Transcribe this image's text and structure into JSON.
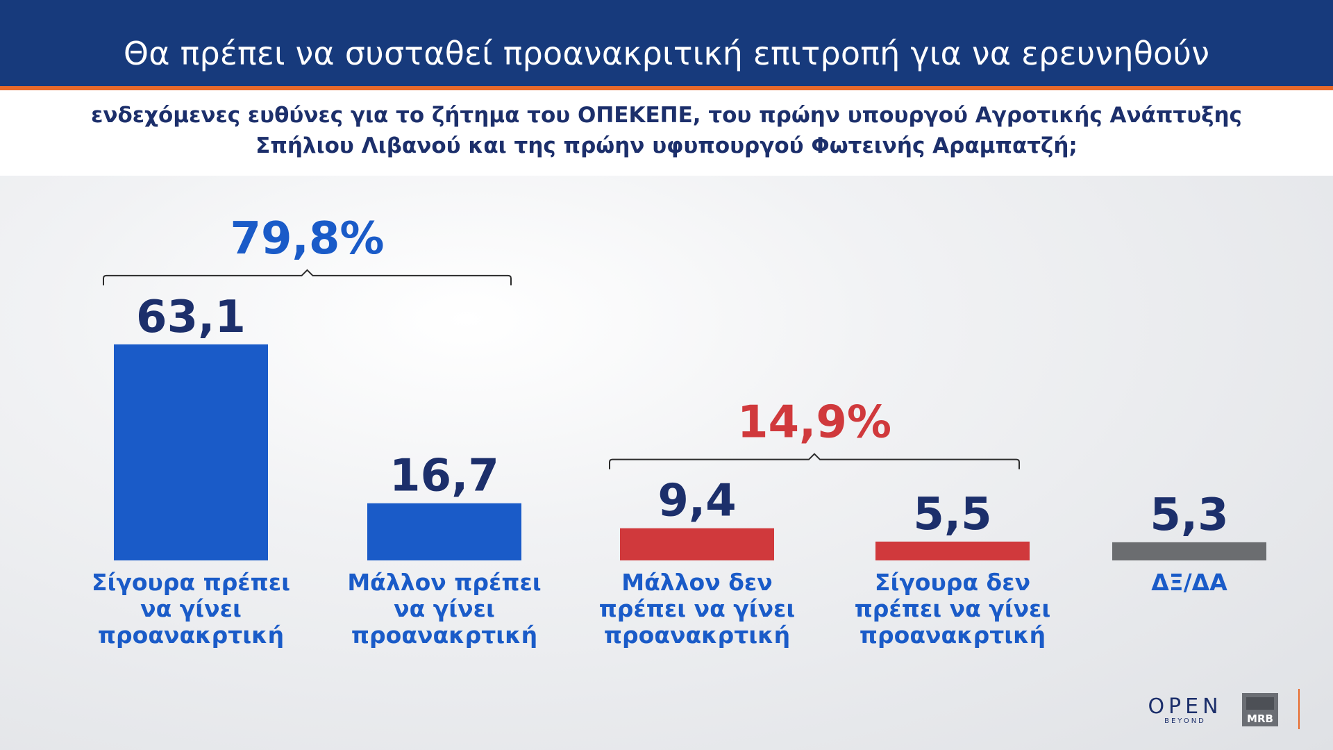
{
  "header": {
    "title": "Θα πρέπει να συσταθεί προανακριτική επιτροπή για να ερευνηθούν",
    "subtitle_line1": "ενδεχόμενες ευθύνες για το ζήτημα του ΟΠΕΚΕΠΕ, του πρώην υπουργού Αγροτικής Ανάπτυξης",
    "subtitle_line2": "Σπήλιου Λιβανού και της πρώην υφυπουργού Φωτεινής Αραμπατζή;"
  },
  "chart_data": {
    "type": "bar",
    "title": "",
    "xlabel": "",
    "ylabel": "",
    "categories": [
      [
        "Σίγουρα πρέπει",
        "να γίνει",
        "προανακρτική"
      ],
      [
        "Μάλλον πρέπει",
        "να γίνει",
        "προανακρτική"
      ],
      [
        "Μάλλον δεν",
        "πρέπει να γίνει",
        "προανακρτική"
      ],
      [
        "Σίγουρα δεν",
        "πρέπει να γίνει",
        "προανακρτική"
      ],
      [
        "ΔΞ/ΔΑ"
      ]
    ],
    "values": [
      63.1,
      16.7,
      9.4,
      5.5,
      5.3
    ],
    "value_labels": [
      "63,1",
      "16,7",
      "9,4",
      "5,5",
      "5,3"
    ],
    "bar_colors": [
      "#1a5bc8",
      "#1a5bc8",
      "#d0393c",
      "#d0393c",
      "#6b6d70"
    ],
    "groups": [
      {
        "label": "79,8%",
        "from": 0,
        "to": 1,
        "color": "#1a5bc8"
      },
      {
        "label": "14,9%",
        "from": 2,
        "to": 3,
        "color": "#d0393c"
      }
    ],
    "value_label_color": "#1c2f6b",
    "category_label_color": "#1a5bc8",
    "grid": false,
    "legend": "none"
  },
  "logos": {
    "open": "OPEN",
    "open_tagline": "BEYOND",
    "mrb": "MRB"
  }
}
